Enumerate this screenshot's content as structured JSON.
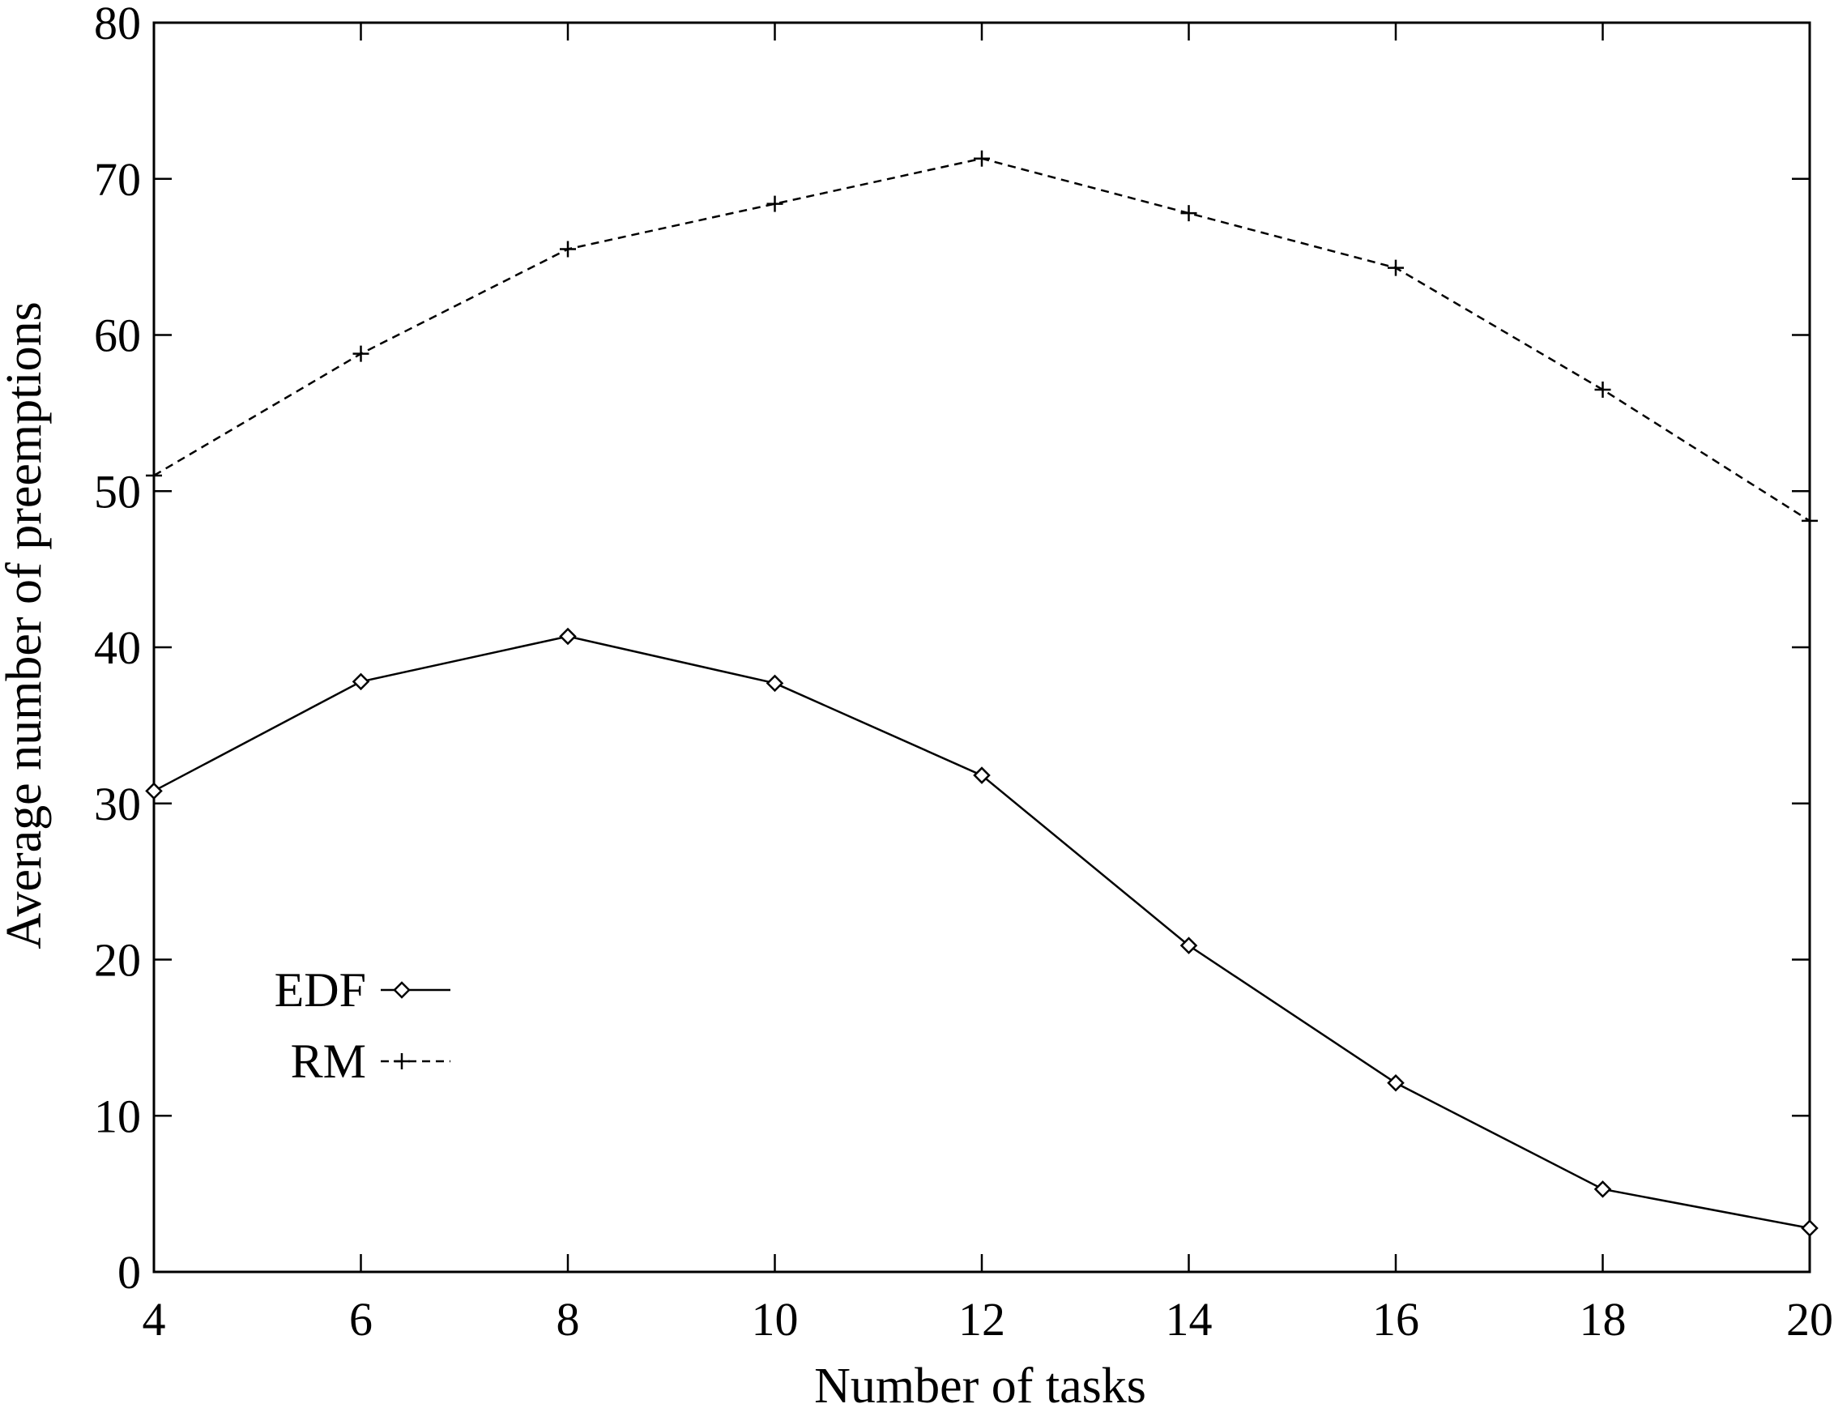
{
  "chart_data": {
    "type": "line",
    "title": "",
    "xlabel": "Number of tasks",
    "ylabel": "Average number of preemptions",
    "x": [
      4,
      6,
      8,
      10,
      12,
      14,
      16,
      18,
      20
    ],
    "xlim": [
      4,
      20
    ],
    "ylim": [
      0,
      80
    ],
    "x_ticks": [
      "4",
      "6",
      "8",
      "10",
      "12",
      "14",
      "16",
      "18",
      "20"
    ],
    "y_ticks": [
      "0",
      "10",
      "20",
      "30",
      "40",
      "50",
      "60",
      "70",
      "80"
    ],
    "grid": false,
    "legend_position": "lower-left",
    "series": [
      {
        "name": "EDF",
        "marker": "diamond",
        "line_style": "solid",
        "color": "#000000",
        "values": [
          30.8,
          37.8,
          40.7,
          37.7,
          31.8,
          20.9,
          12.1,
          5.3,
          2.8
        ]
      },
      {
        "name": "RM",
        "marker": "plus",
        "line_style": "dashed",
        "color": "#000000",
        "values": [
          51.0,
          58.8,
          65.5,
          68.4,
          71.3,
          67.8,
          64.3,
          56.5,
          48.1
        ]
      }
    ]
  }
}
